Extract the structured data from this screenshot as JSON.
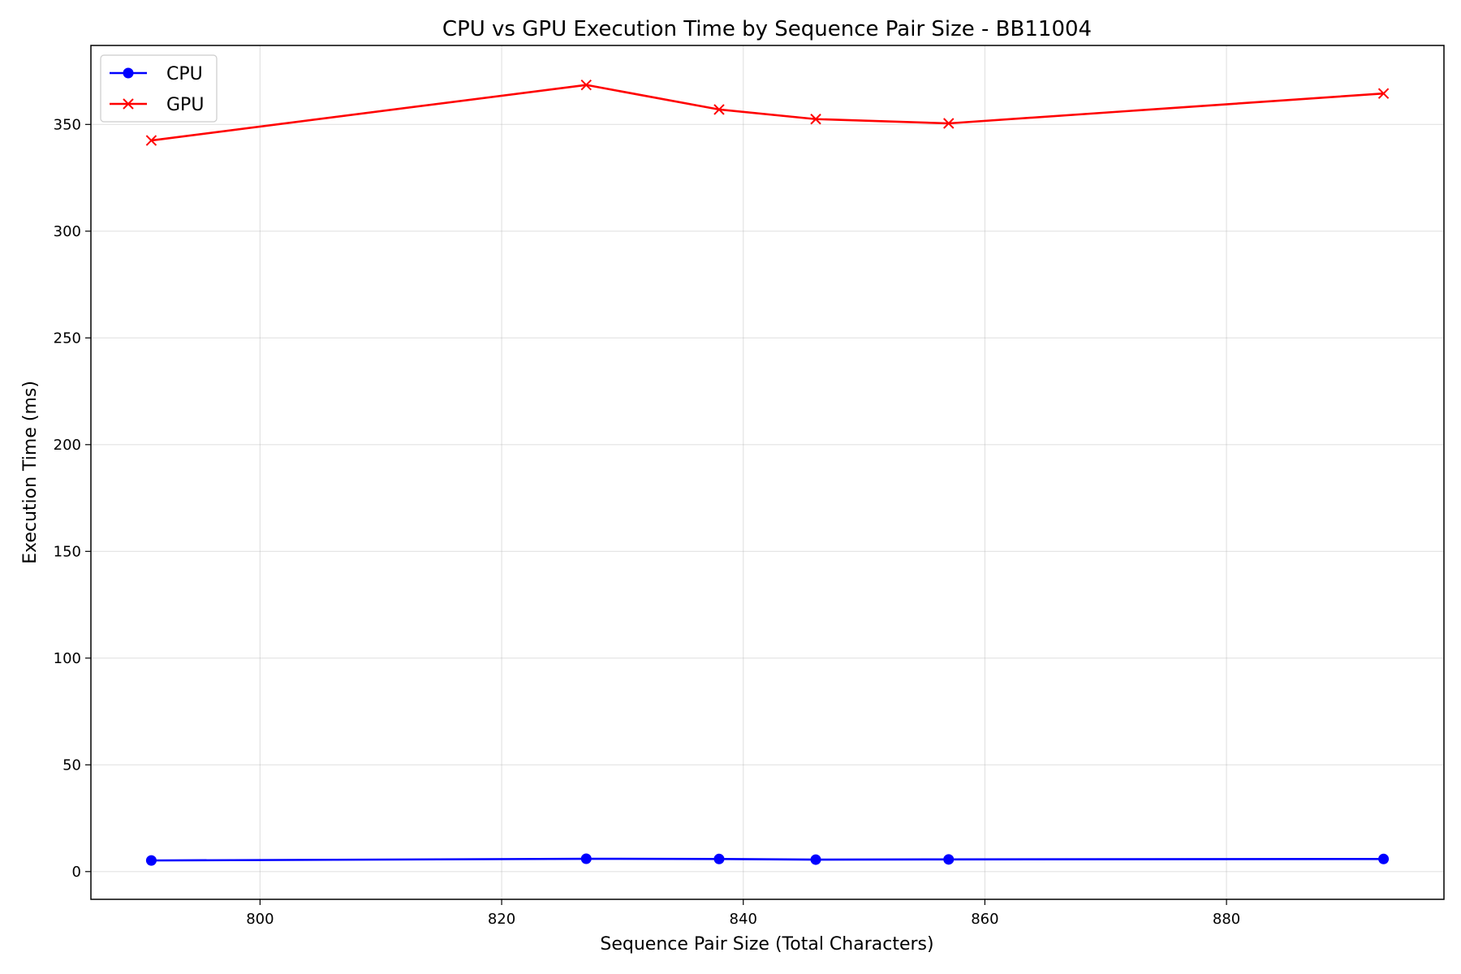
{
  "chart_data": {
    "type": "line",
    "title": "CPU vs GPU Execution Time by Sequence Pair Size - BB11004",
    "xlabel": "Sequence Pair Size (Total Characters)",
    "ylabel": "Execution Time (ms)",
    "xlim": [
      786,
      898
    ],
    "ylim": [
      -13,
      387
    ],
    "xticks": [
      800,
      820,
      840,
      860,
      880
    ],
    "yticks": [
      0,
      50,
      100,
      150,
      200,
      250,
      300,
      350
    ],
    "grid": true,
    "legend_position": "upper-left",
    "series": [
      {
        "name": "CPU",
        "color": "#0000ff",
        "marker": "circle",
        "x": [
          791,
          827,
          838,
          846,
          857,
          893
        ],
        "y": [
          5.2,
          6.0,
          5.9,
          5.6,
          5.7,
          5.9
        ]
      },
      {
        "name": "GPU",
        "color": "#ff0000",
        "marker": "x",
        "x": [
          791,
          827,
          838,
          846,
          857,
          893
        ],
        "y": [
          342.5,
          368.5,
          357.0,
          352.5,
          350.5,
          364.5
        ]
      }
    ]
  }
}
